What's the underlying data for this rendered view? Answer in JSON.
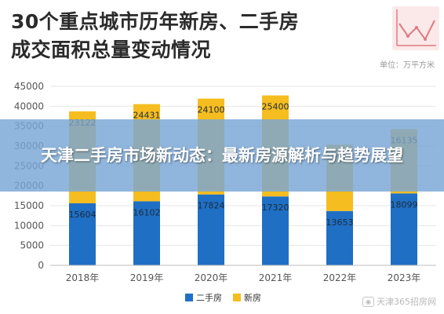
{
  "header": {
    "title_line1": "30个重点城市历年新房、二手房",
    "title_line2": "成交面积总量变动情况",
    "unit": "单位：万平方米",
    "trend_icon": "line-trend-icon"
  },
  "banner": {
    "text": "天津二手房市场新动态：最新房源解析与趋势展望"
  },
  "watermark": {
    "icon": "weibo-icon",
    "text": "天津365招房网"
  },
  "colors": {
    "second_hand": "#1f6fc5",
    "new_house": "#f5bd1f",
    "axis_text": "#555555",
    "grid": "#e6e6e6"
  },
  "chart_data": {
    "type": "bar",
    "stacked": true,
    "categories": [
      "2018年",
      "2019年",
      "2020年",
      "2021年",
      "2022年",
      "2023年"
    ],
    "series": [
      {
        "name": "二手房",
        "color": "#1f6fc5",
        "values": [
          15604,
          16102,
          17824,
          17320,
          13653,
          18099
        ]
      },
      {
        "name": "新房",
        "color": "#f5bd1f",
        "values": [
          23122,
          24431,
          24100,
          25400,
          16679,
          16135
        ]
      }
    ],
    "ylim": [
      0,
      45000
    ],
    "yticks": [
      0,
      5000,
      10000,
      15000,
      20000,
      25000,
      30000,
      35000,
      40000,
      45000
    ],
    "grid": true,
    "legend_position": "bottom"
  }
}
